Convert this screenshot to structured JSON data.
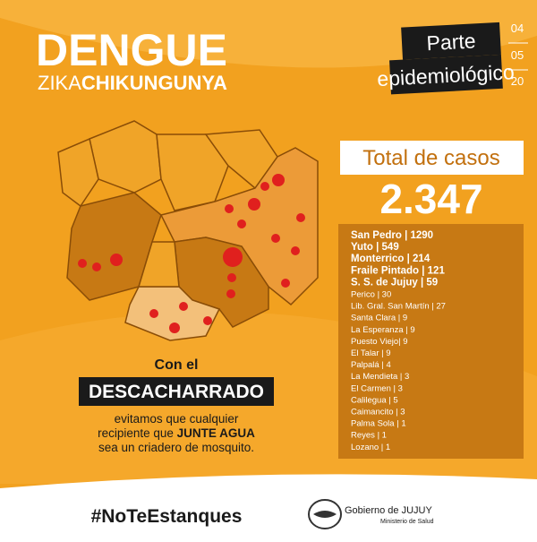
{
  "header": {
    "title": "DENGUE",
    "subtitle_light": "ZIKA",
    "subtitle_bold": "CHIKUNGUNYA"
  },
  "report": {
    "line1": "Parte",
    "line2": "epidemiológico",
    "date": [
      "04",
      "05",
      "20"
    ]
  },
  "total": {
    "label": "Total de casos",
    "value": "2.347"
  },
  "list": {
    "items": [
      {
        "text": "San Pedro | 1290",
        "bold": true
      },
      {
        "text": "Yuto | 549",
        "bold": true
      },
      {
        "text": "Monterrico | 214",
        "bold": true
      },
      {
        "text": "Fraile Pintado | 121",
        "bold": true
      },
      {
        "text": "S. S. de Jujuy | 59",
        "bold": true
      },
      {
        "text": "Perico | 30",
        "bold": false
      },
      {
        "text": "Lib. Gral. San Martín | 27",
        "bold": false
      },
      {
        "text": "Santa Clara | 9",
        "bold": false
      },
      {
        "text": "La Esperanza | 9",
        "bold": false
      },
      {
        "text": "Puesto Viejo| 9",
        "bold": false
      },
      {
        "text": "El Talar | 9",
        "bold": false
      },
      {
        "text": "Palpalá | 4",
        "bold": false
      },
      {
        "text": "La Mendieta | 3",
        "bold": false
      },
      {
        "text": "El Carmen | 3",
        "bold": false
      },
      {
        "text": "Calilegua | 5",
        "bold": false
      },
      {
        "text": "Caimancito | 3",
        "bold": false
      },
      {
        "text": "Palma Sola | 1",
        "bold": false
      },
      {
        "text": "Reyes | 1",
        "bold": false
      },
      {
        "text": "Lozano | 1",
        "bold": false
      }
    ]
  },
  "message": {
    "intro": "Con el",
    "highlight": "DESCACHARRADO",
    "line1": "evitamos que cualquier",
    "line2_a": "recipiente que ",
    "line2_b": "JUNTE AGUA",
    "line3": "sea un criadero de mosquito."
  },
  "footer": {
    "hashtag": "#NoTeEstanques",
    "org": "Gobierno de JUJUY",
    "ministry": "Ministerio de Salud"
  }
}
